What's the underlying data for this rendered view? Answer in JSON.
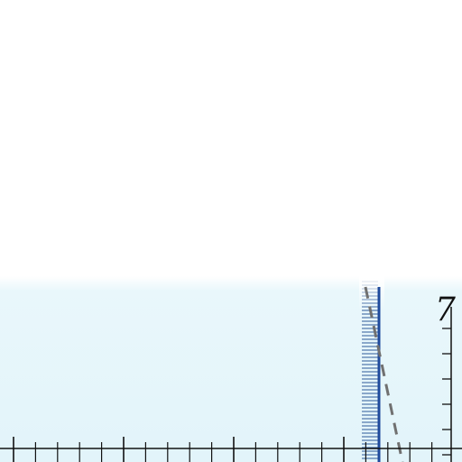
{
  "diagram": {
    "corner_label": "7",
    "colors": {
      "background_top": "#ffffff",
      "background_band": "#e6f6fb",
      "hatch_stroke": "#2e5a9a",
      "divider_line": "#1f4a9c",
      "dashed_line": "#707070",
      "axis": "#111111"
    }
  }
}
